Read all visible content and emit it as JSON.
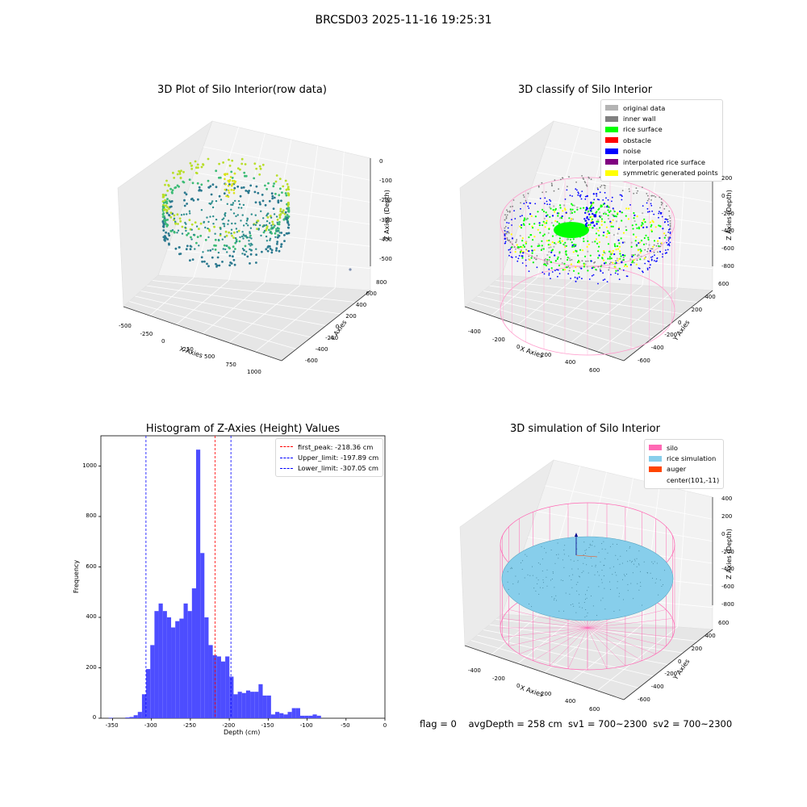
{
  "figure": {
    "suptitle": "BRCSD03 2025-11-16 19:25:31",
    "footer": "flag = 0    avgDepth = 258 cm  sv1 = 700~2300  sv2 = 700~2300"
  },
  "panels": {
    "raw": {
      "title": "3D Plot of Silo Interior(row data)",
      "xlabel": "X Axies",
      "ylabel": "Y Axies",
      "zlabel": "Z Axies (Depth)",
      "xticks": [
        "-500",
        "-250",
        "0",
        "250",
        "500",
        "750",
        "1000"
      ],
      "yticks": [
        "-600",
        "-400",
        "-200",
        "0",
        "200",
        "400",
        "600",
        "800"
      ],
      "zticks": [
        "0",
        "-100",
        "-200",
        "-300",
        "-400",
        "-500"
      ]
    },
    "classify": {
      "title": "3D classify of Silo Interior",
      "xlabel": "X Axies",
      "ylabel": "Y Axies",
      "zlabel": "Z Axies (Depth)",
      "xticks": [
        "-400",
        "-200",
        "0",
        "200",
        "400",
        "600"
      ],
      "yticks": [
        "-600",
        "-400",
        "-200",
        "0",
        "200",
        "400",
        "600"
      ],
      "zticks": [
        "200",
        "0",
        "-200",
        "-400",
        "-600",
        "-800"
      ],
      "legend": [
        {
          "label": "original data",
          "color": "#b3b3b3"
        },
        {
          "label": "inner wall",
          "color": "#808080"
        },
        {
          "label": "rice surface",
          "color": "#00ff00"
        },
        {
          "label": "obstacle",
          "color": "#ff0000"
        },
        {
          "label": "noise",
          "color": "#0000ff"
        },
        {
          "label": "interpolated rice surface",
          "color": "#800080"
        },
        {
          "label": "symmetric generated points",
          "color": "#ffff00"
        }
      ]
    },
    "simulation": {
      "title": "3D simulation of Silo Interior",
      "xlabel": "X Axies",
      "ylabel": "Y Axies",
      "zlabel": "Z Axies (Depth)",
      "xticks": [
        "-400",
        "-200",
        "0",
        "200",
        "400",
        "600"
      ],
      "yticks": [
        "-600",
        "-400",
        "-200",
        "0",
        "200",
        "400",
        "600"
      ],
      "zticks": [
        "400",
        "200",
        "0",
        "-200",
        "-400",
        "-600",
        "-800"
      ],
      "legend": [
        {
          "label": "silo",
          "color": "#ff69b4"
        },
        {
          "label": "rice simulation",
          "color": "#87ceeb"
        },
        {
          "label": "auger",
          "color": "#ff4500"
        },
        {
          "label": "center(101,-11)",
          "color": ""
        }
      ]
    }
  },
  "chart_data": {
    "type": "bar",
    "title": "Histogram of Z-Axies (Height) Values",
    "xlabel": "Depth (cm)",
    "ylabel": "Frequency",
    "xlim": [
      -365,
      0
    ],
    "ylim": [
      0,
      1120
    ],
    "xticks": [
      -350,
      -300,
      -250,
      -200,
      -150,
      -100,
      -50,
      0
    ],
    "yticks": [
      0,
      200,
      400,
      600,
      800,
      1000
    ],
    "bar_color": "#4d4dff",
    "bins_start": -355,
    "bin_width": 5.35,
    "values": [
      2,
      0,
      0,
      0,
      3,
      5,
      12,
      25,
      95,
      195,
      290,
      425,
      455,
      425,
      400,
      360,
      385,
      395,
      455,
      425,
      515,
      1065,
      655,
      400,
      290,
      250,
      245,
      225,
      245,
      165,
      95,
      105,
      100,
      110,
      105,
      105,
      135,
      90,
      90,
      15,
      25,
      20,
      15,
      25,
      40,
      40,
      10,
      10,
      10,
      15,
      10
    ],
    "lines": [
      {
        "label": "first_peak: -218.36 cm",
        "x": -218.36,
        "color": "#ff0000"
      },
      {
        "label": "Upper_limit: -197.89 cm",
        "x": -197.89,
        "color": "#0000ff"
      },
      {
        "label": "Lower_limit: -307.05 cm",
        "x": -307.05,
        "color": "#0000ff"
      }
    ]
  }
}
